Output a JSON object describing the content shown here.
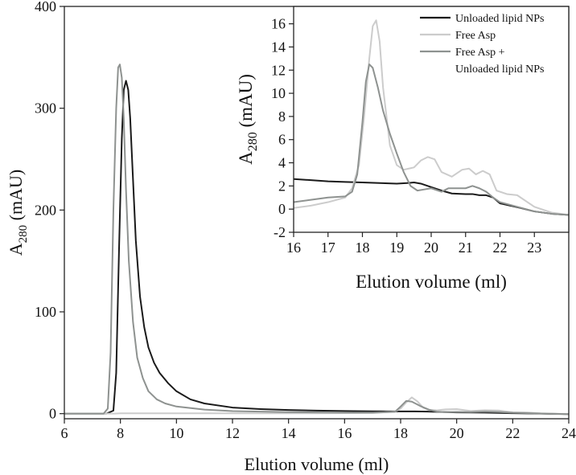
{
  "chart_data": [
    {
      "type": "line",
      "role": "main",
      "xlabel": "Elution volume (ml)",
      "ylabel": {
        "prefix": "A",
        "sub": "280",
        "suffix": " (mAU)"
      },
      "xlim": [
        6,
        24
      ],
      "ylim": [
        -5,
        400
      ],
      "xticks": [
        6,
        8,
        10,
        12,
        14,
        16,
        18,
        20,
        22,
        24
      ],
      "yticks": [
        0,
        100,
        200,
        300,
        400
      ],
      "series": [
        {
          "name": "Unloaded lipid NPs",
          "color": "#1a1a1a",
          "x": [
            6,
            7.5,
            7.75,
            7.85,
            7.95,
            8.05,
            8.12,
            8.2,
            8.28,
            8.35,
            8.45,
            8.55,
            8.7,
            8.85,
            9.0,
            9.2,
            9.4,
            9.7,
            10.0,
            10.5,
            11.0,
            12.0,
            13.0,
            14.0,
            15.0,
            16.0,
            17.0,
            17.5,
            18.0,
            18.5,
            19.0,
            19.5,
            20.0,
            21.0,
            22.0,
            23.0,
            24.0
          ],
          "y": [
            0,
            0,
            3,
            40,
            160,
            270,
            318,
            327,
            318,
            290,
            230,
            170,
            115,
            85,
            65,
            50,
            40,
            30,
            22,
            14,
            10,
            6,
            4.5,
            3.6,
            3.0,
            2.6,
            2.3,
            2.2,
            2.2,
            2.2,
            2.0,
            1.6,
            1.2,
            1.0,
            0.4,
            0,
            -0.5
          ]
        },
        {
          "name": "Free Asp",
          "color": "#cccccc",
          "x": [
            6,
            7.8,
            8.0,
            15.0,
            17.0,
            17.8,
            18.0,
            18.2,
            18.4,
            18.6,
            18.8,
            19.0,
            19.3,
            19.6,
            20.0,
            20.5,
            21.0,
            21.5,
            22.0,
            22.5,
            23.0,
            24.0
          ],
          "y": [
            0,
            0,
            0.3,
            0.3,
            0.6,
            2.0,
            5.0,
            11.0,
            16.0,
            12.0,
            6.0,
            3.5,
            3.3,
            4.2,
            4.5,
            2.6,
            3.4,
            3.1,
            1.3,
            1.2,
            0.3,
            -0.4
          ]
        },
        {
          "name": "Free Asp + Unloaded lipid NPs",
          "color": "#8e9290",
          "x": [
            6,
            7.4,
            7.55,
            7.65,
            7.75,
            7.85,
            7.92,
            7.98,
            8.05,
            8.12,
            8.2,
            8.3,
            8.45,
            8.6,
            8.8,
            9.0,
            9.3,
            9.6,
            10.0,
            11.0,
            12.0,
            14.0,
            16.0,
            17.0,
            17.8,
            18.0,
            18.2,
            18.4,
            18.7,
            19.0,
            19.3,
            19.6,
            20.0,
            20.5,
            21.0,
            21.5,
            22.0,
            22.5,
            23.0,
            24.0
          ],
          "y": [
            0,
            0,
            5,
            60,
            200,
            300,
            340,
            343,
            330,
            290,
            220,
            150,
            90,
            55,
            35,
            22,
            14,
            10,
            7,
            4,
            2.5,
            1.5,
            1.0,
            1.0,
            1.8,
            7.0,
            12.5,
            11.8,
            7.5,
            4.0,
            2.0,
            1.5,
            1.7,
            1.5,
            2.0,
            1.6,
            0.9,
            0.5,
            0.1,
            -0.5
          ]
        }
      ]
    },
    {
      "type": "line",
      "role": "inset",
      "xlabel": "Elution volume (ml)",
      "ylabel": {
        "prefix": "A",
        "sub": "280",
        "suffix": " (mAU)"
      },
      "xlim": [
        16,
        24
      ],
      "ylim": [
        -2,
        17.5
      ],
      "xticks": [
        16,
        17,
        18,
        19,
        20,
        21,
        22,
        23
      ],
      "yticks": [
        -2,
        0,
        2,
        4,
        6,
        8,
        10,
        12,
        14,
        16
      ],
      "legend_position": "top-right",
      "legend": [
        {
          "lines": [
            "Unloaded lipid NPs"
          ],
          "color": "#1a1a1a"
        },
        {
          "lines": [
            "Free Asp"
          ],
          "color": "#cccccc"
        },
        {
          "lines": [
            "Free Asp +",
            "Unloaded lipid NPs"
          ],
          "color": "#8e9290"
        }
      ],
      "series": [
        {
          "name": "Unloaded lipid NPs",
          "color": "#1a1a1a",
          "x": [
            16.0,
            16.5,
            17.0,
            17.5,
            18.0,
            18.5,
            19.0,
            19.3,
            19.5,
            19.7,
            20.0,
            20.3,
            20.6,
            21.0,
            21.2,
            21.4,
            21.6,
            21.8,
            22.0,
            22.3,
            22.6,
            23.0,
            23.5,
            24.0
          ],
          "y": [
            2.6,
            2.5,
            2.4,
            2.35,
            2.3,
            2.25,
            2.2,
            2.25,
            2.3,
            2.2,
            1.9,
            1.6,
            1.35,
            1.3,
            1.3,
            1.2,
            1.2,
            1.0,
            0.5,
            0.3,
            0.1,
            -0.2,
            -0.4,
            -0.5
          ]
        },
        {
          "name": "Free Asp",
          "color": "#cccccc",
          "x": [
            16.0,
            16.5,
            17.0,
            17.5,
            17.7,
            17.9,
            18.05,
            18.2,
            18.3,
            18.4,
            18.5,
            18.6,
            18.8,
            19.0,
            19.2,
            19.5,
            19.7,
            19.9,
            20.1,
            20.3,
            20.6,
            20.9,
            21.1,
            21.3,
            21.5,
            21.7,
            21.9,
            22.2,
            22.5,
            23.0,
            23.5,
            24.0
          ],
          "y": [
            0.1,
            0.3,
            0.6,
            1.0,
            1.8,
            3.8,
            8.0,
            13.0,
            15.8,
            16.3,
            14.5,
            10.5,
            5.5,
            3.8,
            3.4,
            3.6,
            4.2,
            4.5,
            4.3,
            3.2,
            2.8,
            3.4,
            3.5,
            3.0,
            3.3,
            3.0,
            1.6,
            1.3,
            1.2,
            0.2,
            -0.3,
            -0.5
          ]
        },
        {
          "name": "Free Asp + Unloaded lipid NPs",
          "color": "#8e9290",
          "x": [
            16.0,
            16.5,
            17.0,
            17.5,
            17.7,
            17.85,
            18.0,
            18.1,
            18.2,
            18.3,
            18.45,
            18.6,
            18.8,
            19.0,
            19.2,
            19.4,
            19.6,
            19.8,
            20.0,
            20.3,
            20.5,
            20.7,
            21.0,
            21.2,
            21.4,
            21.6,
            21.8,
            22.0,
            22.5,
            23.0,
            23.5,
            24.0
          ],
          "y": [
            0.6,
            0.8,
            1.0,
            1.1,
            1.5,
            3.0,
            7.5,
            11.0,
            12.5,
            12.2,
            10.5,
            8.5,
            6.5,
            4.8,
            3.2,
            2.0,
            1.6,
            1.7,
            1.8,
            1.5,
            1.8,
            1.8,
            1.8,
            2.0,
            1.8,
            1.5,
            1.0,
            0.6,
            0.2,
            -0.2,
            -0.4,
            -0.5
          ]
        }
      ]
    }
  ]
}
